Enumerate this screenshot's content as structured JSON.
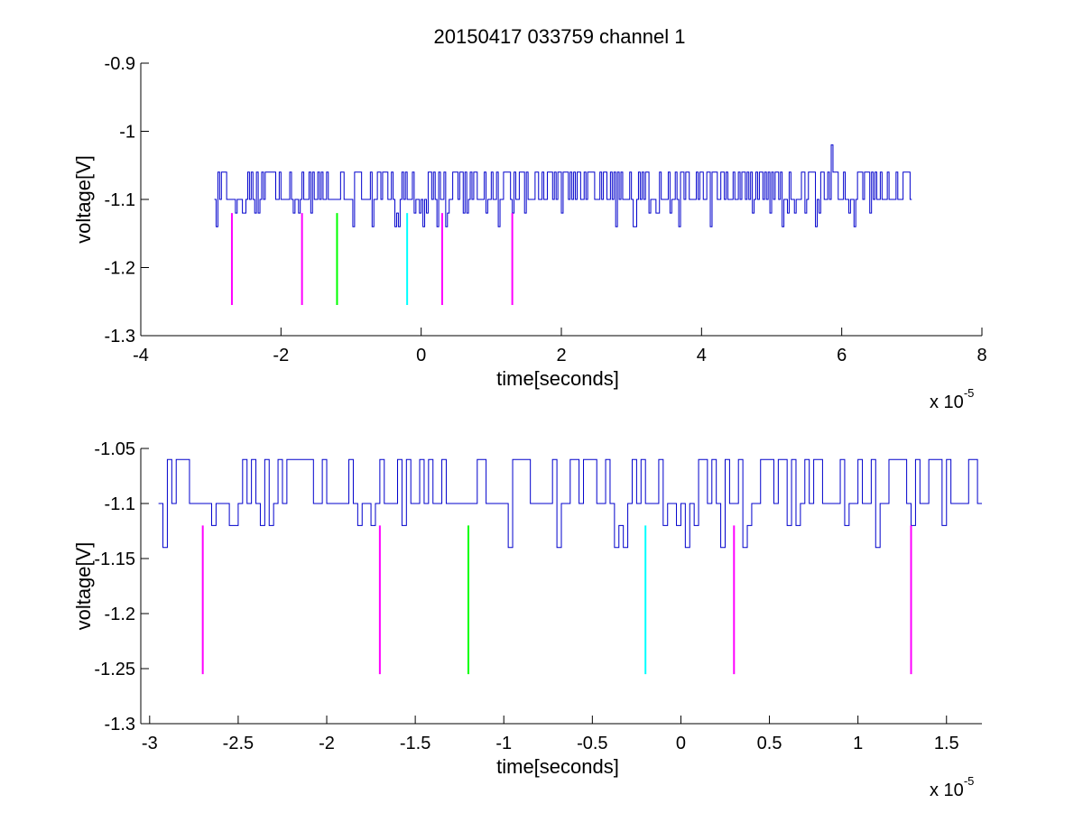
{
  "figure_title": "20150417 033759 channel 1",
  "chart_data": [
    {
      "type": "line",
      "xlabel": "time[seconds]",
      "ylabel": "voltage[V]",
      "xlim": [
        -4,
        8
      ],
      "ylim": [
        -1.3,
        -0.9
      ],
      "x_multiplier": {
        "base": "x 10",
        "exponent": "-5"
      },
      "xticks": [
        -4,
        -2,
        0,
        2,
        4,
        6,
        8
      ],
      "xticklabels": [
        "-4",
        "-2",
        "0",
        "2",
        "4",
        "6",
        "8"
      ],
      "yticks": [
        -1.3,
        -1.2,
        -1.1,
        -1,
        -0.9
      ],
      "yticklabels": [
        "-1.3",
        "-1.2",
        "-1.1",
        "-1",
        "-0.9"
      ],
      "grid": false,
      "signal": {
        "color": "#0000cc",
        "x_start": -2.95,
        "x_end": 7.0,
        "sample_step": 0.025,
        "baseline": -1.1,
        "levels": [
          -1.06,
          -1.1,
          -1.12,
          -1.14
        ],
        "spike": {
          "x": 5.85,
          "y": -1.02
        }
      },
      "markers": [
        {
          "x": -2.7,
          "y_top": -1.12,
          "y_bottom": -1.255,
          "color": "#ff00ff"
        },
        {
          "x": -1.7,
          "y_top": -1.12,
          "y_bottom": -1.255,
          "color": "#ff00ff"
        },
        {
          "x": -1.2,
          "y_top": -1.12,
          "y_bottom": -1.255,
          "color": "#00ff00"
        },
        {
          "x": -0.2,
          "y_top": -1.12,
          "y_bottom": -1.255,
          "color": "#00ffff"
        },
        {
          "x": 0.3,
          "y_top": -1.12,
          "y_bottom": -1.255,
          "color": "#ff00ff"
        },
        {
          "x": 1.3,
          "y_top": -1.12,
          "y_bottom": -1.255,
          "color": "#ff00ff"
        }
      ]
    },
    {
      "type": "line",
      "xlabel": "time[seconds]",
      "ylabel": "voltage[V]",
      "xlim": [
        -3.05,
        1.7
      ],
      "ylim": [
        -1.3,
        -1.05
      ],
      "x_multiplier": {
        "base": "x 10",
        "exponent": "-5"
      },
      "xticks": [
        -3,
        -2.5,
        -2,
        -1.5,
        -1,
        -0.5,
        0,
        0.5,
        1,
        1.5
      ],
      "xticklabels": [
        "-3",
        "-2.5",
        "-2",
        "-1.5",
        "-1",
        "-0.5",
        "0",
        "0.5",
        "1",
        "1.5"
      ],
      "yticks": [
        -1.3,
        -1.25,
        -1.2,
        -1.15,
        -1.1,
        -1.05
      ],
      "yticklabels": [
        "-1.3",
        "-1.25",
        "-1.2",
        "-1.15",
        "-1.1",
        "-1.05"
      ],
      "grid": false,
      "signal": {
        "color": "#0000cc",
        "x_start": -2.95,
        "x_end": 1.7,
        "sample_step": 0.025,
        "baseline": -1.1,
        "levels": [
          -1.06,
          -1.1,
          -1.12,
          -1.14
        ]
      },
      "markers": [
        {
          "x": -2.7,
          "y_top": -1.12,
          "y_bottom": -1.255,
          "color": "#ff00ff"
        },
        {
          "x": -1.7,
          "y_top": -1.12,
          "y_bottom": -1.255,
          "color": "#ff00ff"
        },
        {
          "x": -1.2,
          "y_top": -1.12,
          "y_bottom": -1.255,
          "color": "#00ff00"
        },
        {
          "x": -0.2,
          "y_top": -1.12,
          "y_bottom": -1.255,
          "color": "#00ffff"
        },
        {
          "x": 0.3,
          "y_top": -1.12,
          "y_bottom": -1.255,
          "color": "#ff00ff"
        },
        {
          "x": 1.3,
          "y_top": -1.12,
          "y_bottom": -1.255,
          "color": "#ff00ff"
        }
      ]
    }
  ]
}
